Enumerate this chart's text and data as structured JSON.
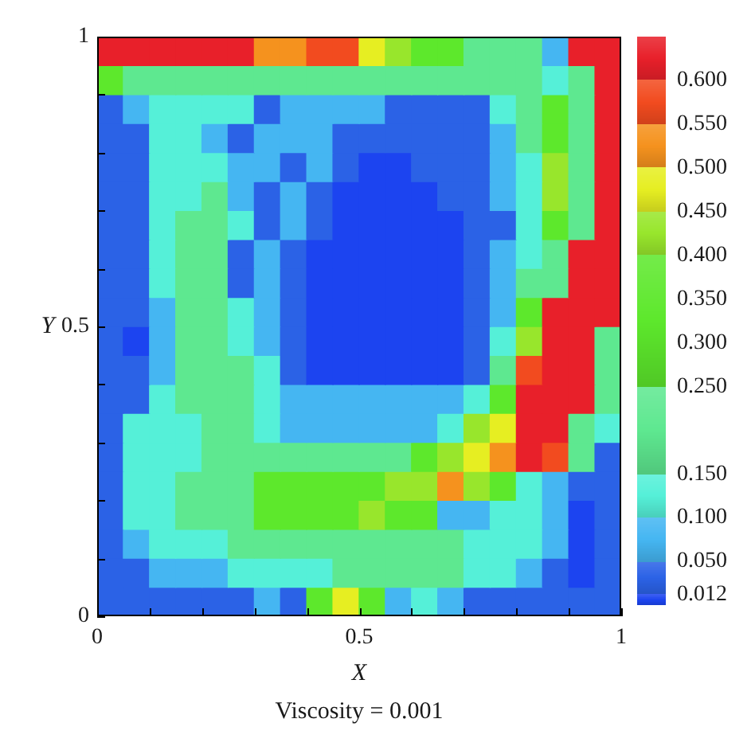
{
  "chart_data": {
    "type": "heatmap",
    "title": "Viscosity = 0.001",
    "xlabel": "X",
    "ylabel": "Y",
    "xlim": [
      0,
      1
    ],
    "ylim": [
      0,
      1
    ],
    "xticks": [
      0,
      {
        "value": 0.1,
        "label": null
      },
      {
        "value": 0.2,
        "label": null
      },
      {
        "value": 0.3,
        "label": null
      },
      {
        "value": 0.4,
        "label": null
      },
      0.5,
      {
        "value": 0.6,
        "label": null
      },
      {
        "value": 0.7,
        "label": null
      },
      {
        "value": 0.8,
        "label": null
      },
      {
        "value": 0.9,
        "label": null
      },
      1
    ],
    "yticks": [
      0,
      {
        "value": 0.1,
        "label": null
      },
      {
        "value": 0.2,
        "label": null
      },
      {
        "value": 0.3,
        "label": null
      },
      {
        "value": 0.4,
        "label": null
      },
      0.5,
      {
        "value": 0.6,
        "label": null
      },
      {
        "value": 0.7,
        "label": null
      },
      {
        "value": 0.8,
        "label": null
      },
      {
        "value": 0.9,
        "label": null
      },
      1
    ],
    "clim": [
      0,
      0.65
    ],
    "cticks": [
      0.012,
      {
        "value": 0.05,
        "label": "0.050"
      },
      {
        "value": 0.1,
        "label": "0.100"
      },
      {
        "value": 0.15,
        "label": "0.150"
      },
      {
        "value": 0.25,
        "label": "0.250"
      },
      {
        "value": 0.3,
        "label": "0.300"
      },
      {
        "value": 0.35,
        "label": "0.350"
      },
      {
        "value": 0.4,
        "label": "0.400"
      },
      {
        "value": 0.45,
        "label": "0.450"
      },
      {
        "value": 0.5,
        "label": "0.500"
      },
      {
        "value": 0.55,
        "label": "0.550"
      },
      {
        "value": 0.6,
        "label": "0.600"
      }
    ],
    "cells": [
      [
        0.625,
        0.625,
        0.625,
        0.625,
        0.625,
        0.625,
        0.525,
        0.525,
        0.575,
        0.575,
        0.475,
        0.425,
        0.325,
        0.325,
        0.2,
        0.2,
        0.2,
        0.075,
        0.625,
        0.625
      ],
      [
        0.325,
        0.2,
        0.2,
        0.2,
        0.2,
        0.2,
        0.2,
        0.2,
        0.2,
        0.2,
        0.2,
        0.2,
        0.2,
        0.2,
        0.2,
        0.2,
        0.2,
        0.125,
        0.2,
        0.625
      ],
      [
        0.031,
        0.075,
        0.125,
        0.125,
        0.125,
        0.125,
        0.031,
        0.075,
        0.075,
        0.075,
        0.075,
        0.031,
        0.031,
        0.031,
        0.031,
        0.125,
        0.2,
        0.325,
        0.2,
        0.625
      ],
      [
        0.031,
        0.031,
        0.125,
        0.125,
        0.075,
        0.031,
        0.075,
        0.075,
        0.075,
        0.031,
        0.031,
        0.031,
        0.031,
        0.031,
        0.031,
        0.075,
        0.2,
        0.325,
        0.2,
        0.625
      ],
      [
        0.031,
        0.031,
        0.125,
        0.125,
        0.125,
        0.075,
        0.075,
        0.031,
        0.075,
        0.031,
        0.006,
        0.006,
        0.031,
        0.031,
        0.031,
        0.075,
        0.125,
        0.425,
        0.2,
        0.625
      ],
      [
        0.031,
        0.031,
        0.125,
        0.125,
        0.2,
        0.075,
        0.031,
        0.075,
        0.031,
        0.006,
        0.006,
        0.006,
        0.006,
        0.031,
        0.031,
        0.075,
        0.125,
        0.425,
        0.2,
        0.625
      ],
      [
        0.031,
        0.031,
        0.125,
        0.2,
        0.2,
        0.125,
        0.031,
        0.075,
        0.031,
        0.006,
        0.006,
        0.006,
        0.006,
        0.006,
        0.031,
        0.031,
        0.125,
        0.325,
        0.2,
        0.625
      ],
      [
        0.031,
        0.031,
        0.125,
        0.2,
        0.2,
        0.031,
        0.075,
        0.031,
        0.006,
        0.006,
        0.006,
        0.006,
        0.006,
        0.006,
        0.031,
        0.075,
        0.125,
        0.2,
        0.625,
        0.625
      ],
      [
        0.031,
        0.031,
        0.125,
        0.2,
        0.2,
        0.031,
        0.075,
        0.031,
        0.006,
        0.006,
        0.006,
        0.006,
        0.006,
        0.006,
        0.031,
        0.075,
        0.2,
        0.2,
        0.625,
        0.625
      ],
      [
        0.031,
        0.031,
        0.075,
        0.2,
        0.2,
        0.125,
        0.075,
        0.031,
        0.006,
        0.006,
        0.006,
        0.006,
        0.006,
        0.006,
        0.031,
        0.075,
        0.325,
        0.625,
        0.625,
        0.625
      ],
      [
        0.031,
        0.006,
        0.075,
        0.2,
        0.2,
        0.125,
        0.075,
        0.031,
        0.006,
        0.006,
        0.006,
        0.006,
        0.006,
        0.006,
        0.031,
        0.125,
        0.425,
        0.625,
        0.625,
        0.2
      ],
      [
        0.031,
        0.031,
        0.075,
        0.2,
        0.2,
        0.2,
        0.125,
        0.031,
        0.006,
        0.006,
        0.006,
        0.006,
        0.006,
        0.006,
        0.031,
        0.2,
        0.575,
        0.625,
        0.625,
        0.2
      ],
      [
        0.031,
        0.031,
        0.125,
        0.2,
        0.2,
        0.2,
        0.125,
        0.075,
        0.075,
        0.075,
        0.075,
        0.075,
        0.075,
        0.075,
        0.125,
        0.325,
        0.625,
        0.625,
        0.625,
        0.2
      ],
      [
        0.031,
        0.125,
        0.125,
        0.125,
        0.2,
        0.2,
        0.125,
        0.075,
        0.075,
        0.075,
        0.075,
        0.075,
        0.075,
        0.125,
        0.425,
        0.475,
        0.625,
        0.625,
        0.2,
        0.125
      ],
      [
        0.031,
        0.125,
        0.125,
        0.125,
        0.2,
        0.2,
        0.2,
        0.2,
        0.2,
        0.2,
        0.2,
        0.2,
        0.325,
        0.425,
        0.475,
        0.525,
        0.625,
        0.575,
        0.2,
        0.031
      ],
      [
        0.031,
        0.125,
        0.125,
        0.2,
        0.2,
        0.2,
        0.325,
        0.325,
        0.325,
        0.325,
        0.325,
        0.425,
        0.425,
        0.525,
        0.425,
        0.325,
        0.125,
        0.075,
        0.031,
        0.031
      ],
      [
        0.031,
        0.125,
        0.125,
        0.2,
        0.2,
        0.2,
        0.325,
        0.325,
        0.325,
        0.325,
        0.425,
        0.325,
        0.325,
        0.075,
        0.075,
        0.125,
        0.125,
        0.075,
        0.006,
        0.031
      ],
      [
        0.031,
        0.075,
        0.125,
        0.125,
        0.125,
        0.2,
        0.2,
        0.2,
        0.2,
        0.2,
        0.2,
        0.2,
        0.2,
        0.2,
        0.125,
        0.125,
        0.125,
        0.075,
        0.006,
        0.031
      ],
      [
        0.031,
        0.031,
        0.075,
        0.075,
        0.075,
        0.125,
        0.125,
        0.125,
        0.125,
        0.2,
        0.2,
        0.2,
        0.2,
        0.2,
        0.125,
        0.125,
        0.075,
        0.031,
        0.006,
        0.031
      ],
      [
        0.031,
        0.031,
        0.031,
        0.031,
        0.031,
        0.031,
        0.075,
        0.031,
        0.325,
        0.475,
        0.325,
        0.075,
        0.125,
        0.075,
        0.031,
        0.031,
        0.031,
        0.031,
        0.031,
        0.031
      ]
    ]
  }
}
